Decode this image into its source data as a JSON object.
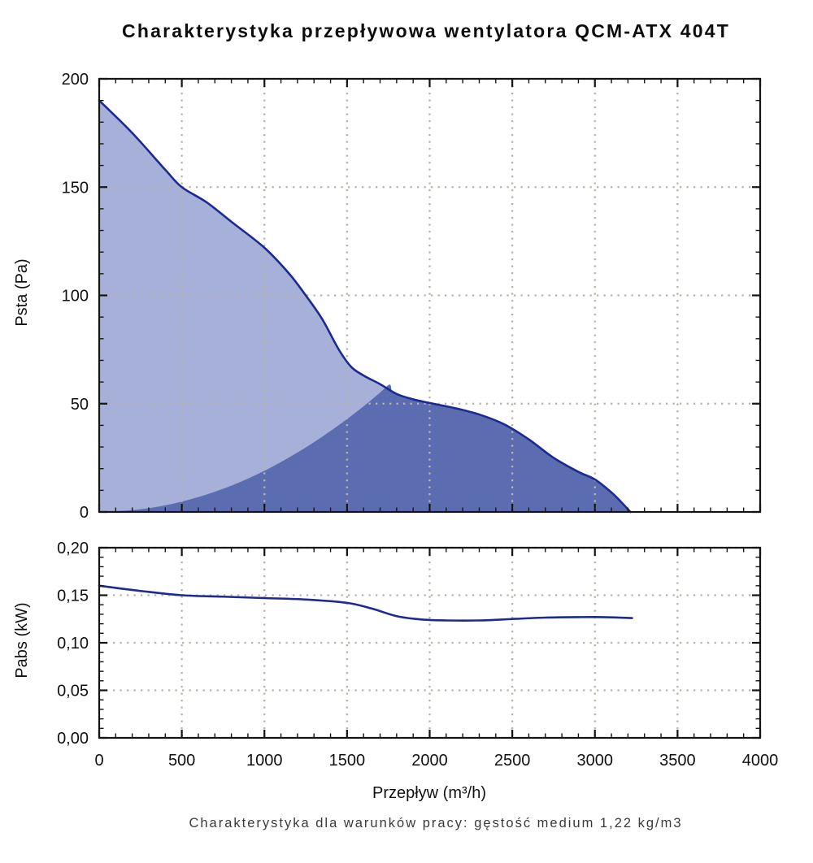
{
  "title": "Charakterystyka przepływowa wentylatora QCM-ATX 404T",
  "caption": "Charakterystyka dla warunków pracy: gęstość medium 1,22 kg/m3",
  "xlabel": "Przepływw (m³/h)",
  "colors": {
    "curve_line": "#1d2b90",
    "fan_area_fill": "#a6b0d8",
    "working_area_fill": "#5b6db0",
    "gridline": "#b9b4a8",
    "axis": "#141414"
  },
  "chart_data": [
    {
      "type": "area",
      "name": "static-pressure-chart",
      "ylabel": "Psta (Pa)",
      "xlabel": "Przepływ (m³/h)",
      "xlim": [
        0,
        4000
      ],
      "ylim": [
        0,
        200
      ],
      "x_major_ticks": [
        0,
        500,
        1000,
        1500,
        2000,
        2500,
        3000,
        3500,
        4000
      ],
      "x_tick_labels": [
        "0",
        "500",
        "1000",
        "1500",
        "2000",
        "2500",
        "3000",
        "3500",
        "4000"
      ],
      "x_minor_step": 100,
      "y_major_ticks": [
        0,
        50,
        100,
        150,
        200
      ],
      "y_tick_labels": [
        "0",
        "50",
        "100",
        "150",
        "200"
      ],
      "y_minor_step": 10,
      "grid": true,
      "series": [
        {
          "name": "fan-pressure-curve",
          "role": "fan_curve",
          "x": [
            0,
            200,
            400,
            500,
            650,
            800,
            1000,
            1150,
            1250,
            1350,
            1450,
            1525,
            1600,
            1700,
            1800,
            1900,
            2000,
            2150,
            2300,
            2450,
            2600,
            2750,
            2900,
            3000,
            3100,
            3160,
            3215
          ],
          "y": [
            190,
            175,
            158,
            150,
            143,
            134,
            122,
            110,
            100,
            89,
            75,
            67,
            63,
            59,
            54.5,
            52,
            50.3,
            48,
            45,
            40.5,
            33.5,
            25,
            18.5,
            15,
            9,
            4.5,
            0
          ]
        },
        {
          "name": "working-area",
          "role": "working_area",
          "x": [
            0,
            250,
            500,
            750,
            1000,
            1250,
            1450,
            1600,
            1700,
            1757,
            1772,
            1800,
            1900,
            2000,
            2150,
            2300,
            2450,
            2600,
            2750,
            2900,
            3000,
            3100,
            3160,
            3215
          ],
          "y": [
            0,
            1.2,
            4.8,
            10.7,
            19,
            29.8,
            40.1,
            48.8,
            55.1,
            58.8,
            55.9,
            54.5,
            52,
            50.3,
            48,
            45,
            40.5,
            33.5,
            25,
            18.5,
            15,
            9,
            4.5,
            0
          ]
        }
      ]
    },
    {
      "type": "line",
      "name": "absorbed-power-chart",
      "ylabel": "Pabs (kW)",
      "xlim": [
        0,
        4000
      ],
      "ylim": [
        0,
        0.2
      ],
      "x_major_ticks": [
        0,
        500,
        1000,
        1500,
        2000,
        2500,
        3000,
        3500,
        4000
      ],
      "x_tick_labels": [
        "0",
        "500",
        "1000",
        "1500",
        "2000",
        "2500",
        "3000",
        "3500",
        "4000"
      ],
      "x_minor_step": 100,
      "y_major_ticks": [
        0,
        0.05,
        0.1,
        0.15,
        0.2
      ],
      "y_tick_labels": [
        "0,00",
        "0,05",
        "0,10",
        "0,15",
        "0,20"
      ],
      "y_minor_step": 0.01,
      "grid": true,
      "series": [
        {
          "name": "absorbed-power-curve",
          "role": "line",
          "x": [
            0,
            250,
            500,
            750,
            1000,
            1250,
            1500,
            1650,
            1800,
            1950,
            2100,
            2300,
            2500,
            2700,
            2900,
            3050,
            3225
          ],
          "y": [
            0.16,
            0.1545,
            0.15,
            0.1485,
            0.147,
            0.1455,
            0.142,
            0.136,
            0.128,
            0.1245,
            0.1235,
            0.1235,
            0.125,
            0.1265,
            0.127,
            0.127,
            0.126
          ]
        }
      ]
    }
  ]
}
